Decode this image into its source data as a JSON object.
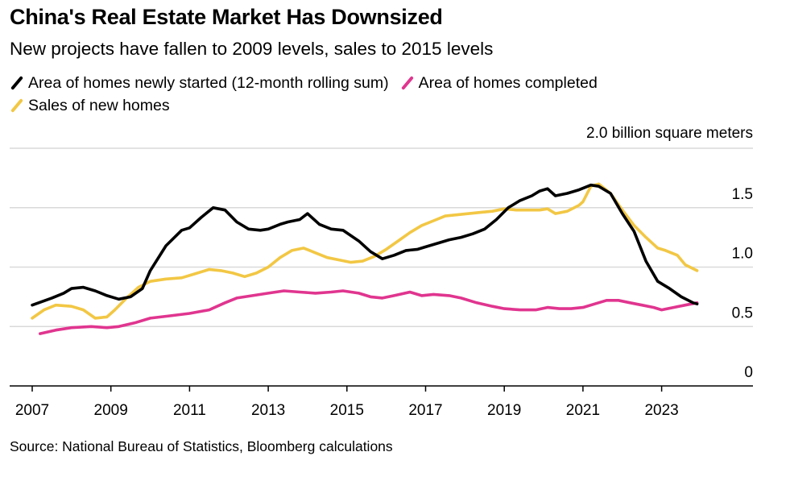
{
  "title": "China's Real Estate Market Has Downsized",
  "subtitle": "New projects have fallen to 2009 levels, sales to 2015 levels",
  "source": "Source: National Bureau of Statistics, Bloomberg calculations",
  "colors": {
    "started": "#000000",
    "completed": "#e0358f",
    "sales": "#f2c744",
    "grid": "#d9d9d9",
    "axis": "#000000"
  },
  "chart_data": {
    "type": "line",
    "ylabel": "2.0 billion square meters",
    "ylim": [
      0,
      2.0
    ],
    "xlim": [
      2006.8,
      2025.3
    ],
    "y_ticks": [
      {
        "value": 0,
        "label": "0"
      },
      {
        "value": 0.5,
        "label": "0.5"
      },
      {
        "value": 1.0,
        "label": "1.0"
      },
      {
        "value": 1.5,
        "label": "1.5"
      }
    ],
    "x_ticks": [
      {
        "value": 2007,
        "label": "2007"
      },
      {
        "value": 2009,
        "label": "2009"
      },
      {
        "value": 2011,
        "label": "2011"
      },
      {
        "value": 2013,
        "label": "2013"
      },
      {
        "value": 2015,
        "label": "2015"
      },
      {
        "value": 2017,
        "label": "2017"
      },
      {
        "value": 2019,
        "label": "2019"
      },
      {
        "value": 2021,
        "label": "2021"
      },
      {
        "value": 2023,
        "label": "2023"
      }
    ],
    "legend_placement": "top-left",
    "series": [
      {
        "key": "started",
        "name": "Area of homes newly started (12-month rolling sum)",
        "color": "#000000",
        "x": [
          2007.0,
          2007.5,
          2007.8,
          2008.0,
          2008.3,
          2008.6,
          2008.9,
          2009.2,
          2009.5,
          2009.8,
          2010.0,
          2010.4,
          2010.8,
          2011.0,
          2011.3,
          2011.6,
          2011.9,
          2012.2,
          2012.5,
          2012.8,
          2013.0,
          2013.3,
          2013.5,
          2013.8,
          2014.0,
          2014.3,
          2014.6,
          2014.9,
          2015.3,
          2015.6,
          2015.9,
          2016.2,
          2016.5,
          2016.8,
          2017.0,
          2017.3,
          2017.6,
          2017.9,
          2018.2,
          2018.5,
          2018.8,
          2019.1,
          2019.4,
          2019.7,
          2019.9,
          2020.1,
          2020.3,
          2020.6,
          2020.9,
          2021.2,
          2021.4,
          2021.7,
          2022.0,
          2022.3,
          2022.6,
          2022.9,
          2023.2,
          2023.5,
          2023.8,
          2023.9
        ],
        "y": [
          0.68,
          0.74,
          0.78,
          0.82,
          0.83,
          0.8,
          0.76,
          0.73,
          0.75,
          0.82,
          0.97,
          1.18,
          1.31,
          1.33,
          1.42,
          1.5,
          1.48,
          1.38,
          1.32,
          1.31,
          1.32,
          1.36,
          1.38,
          1.4,
          1.45,
          1.36,
          1.32,
          1.31,
          1.22,
          1.13,
          1.07,
          1.1,
          1.14,
          1.15,
          1.17,
          1.2,
          1.23,
          1.25,
          1.28,
          1.32,
          1.4,
          1.5,
          1.56,
          1.6,
          1.64,
          1.66,
          1.6,
          1.62,
          1.65,
          1.69,
          1.68,
          1.62,
          1.45,
          1.3,
          1.05,
          0.88,
          0.82,
          0.75,
          0.7,
          0.69
        ]
      },
      {
        "key": "completed",
        "name": "Area of homes completed",
        "color": "#e0358f",
        "x": [
          2007.2,
          2007.6,
          2008.0,
          2008.5,
          2008.9,
          2009.2,
          2009.6,
          2010.0,
          2010.5,
          2011.0,
          2011.5,
          2011.9,
          2012.2,
          2012.6,
          2013.0,
          2013.4,
          2013.8,
          2014.2,
          2014.6,
          2014.9,
          2015.3,
          2015.6,
          2015.9,
          2016.2,
          2016.6,
          2016.9,
          2017.2,
          2017.6,
          2017.9,
          2018.3,
          2018.7,
          2019.0,
          2019.4,
          2019.8,
          2020.1,
          2020.4,
          2020.7,
          2021.0,
          2021.3,
          2021.6,
          2021.9,
          2022.2,
          2022.5,
          2022.8,
          2023.0,
          2023.3,
          2023.6,
          2023.9
        ],
        "y": [
          0.44,
          0.47,
          0.49,
          0.5,
          0.49,
          0.5,
          0.53,
          0.57,
          0.59,
          0.61,
          0.64,
          0.7,
          0.74,
          0.76,
          0.78,
          0.8,
          0.79,
          0.78,
          0.79,
          0.8,
          0.78,
          0.75,
          0.74,
          0.76,
          0.79,
          0.76,
          0.77,
          0.76,
          0.74,
          0.7,
          0.67,
          0.65,
          0.64,
          0.64,
          0.66,
          0.65,
          0.65,
          0.66,
          0.69,
          0.72,
          0.72,
          0.7,
          0.68,
          0.66,
          0.64,
          0.66,
          0.68,
          0.7
        ]
      },
      {
        "key": "sales",
        "name": "Sales of new homes",
        "color": "#f2c744",
        "x": [
          2007.0,
          2007.3,
          2007.6,
          2008.0,
          2008.3,
          2008.6,
          2008.9,
          2009.1,
          2009.4,
          2009.7,
          2010.0,
          2010.4,
          2010.8,
          2011.1,
          2011.5,
          2011.8,
          2012.1,
          2012.4,
          2012.7,
          2013.0,
          2013.3,
          2013.6,
          2013.9,
          2014.2,
          2014.5,
          2014.8,
          2015.1,
          2015.4,
          2015.7,
          2016.0,
          2016.3,
          2016.6,
          2016.9,
          2017.2,
          2017.5,
          2017.8,
          2018.1,
          2018.4,
          2018.7,
          2019.0,
          2019.3,
          2019.6,
          2019.9,
          2020.1,
          2020.3,
          2020.6,
          2020.9,
          2021.0,
          2021.2,
          2021.4,
          2021.7,
          2022.0,
          2022.3,
          2022.6,
          2022.9,
          2023.1,
          2023.4,
          2023.6,
          2023.9
        ],
        "y": [
          0.57,
          0.64,
          0.68,
          0.67,
          0.64,
          0.57,
          0.58,
          0.64,
          0.74,
          0.83,
          0.88,
          0.9,
          0.91,
          0.94,
          0.98,
          0.97,
          0.95,
          0.92,
          0.95,
          1.0,
          1.08,
          1.14,
          1.16,
          1.12,
          1.08,
          1.06,
          1.04,
          1.05,
          1.09,
          1.15,
          1.22,
          1.29,
          1.35,
          1.39,
          1.43,
          1.44,
          1.45,
          1.46,
          1.47,
          1.49,
          1.48,
          1.48,
          1.48,
          1.49,
          1.45,
          1.47,
          1.52,
          1.55,
          1.68,
          1.7,
          1.62,
          1.48,
          1.35,
          1.25,
          1.16,
          1.14,
          1.1,
          1.02,
          0.97
        ]
      }
    ]
  }
}
